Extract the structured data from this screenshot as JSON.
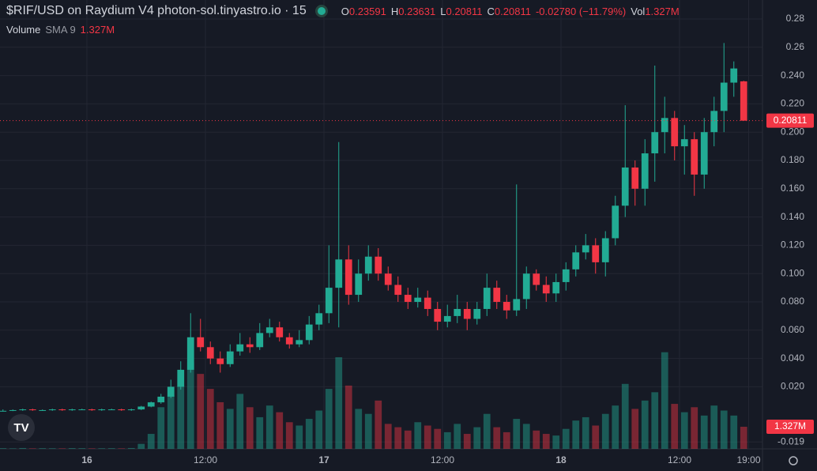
{
  "chart_data": {
    "type": "candlestick",
    "title": "$RIF/USD on Raydium V4 photon-sol.tinyastro.io · 15",
    "ohlc_legend": [
      {
        "label": "O",
        "value": "0.23591"
      },
      {
        "label": "H",
        "value": "0.23631"
      },
      {
        "label": "L",
        "value": "0.20811"
      },
      {
        "label": "C",
        "value": "0.20811"
      }
    ],
    "change": "-0.02780 (−11.79%)",
    "vol_label": "Vol",
    "volume_title": "Volume",
    "volume_sma": "SMA 9",
    "volume_value": "1.327M",
    "colors": {
      "up": "#22ab94",
      "down": "#f23645"
    },
    "grid": true,
    "xlim": [
      -8.8,
      68.4
    ],
    "xticks": [
      {
        "value": 0,
        "label": "16"
      },
      {
        "value": 12,
        "label": "12:00"
      },
      {
        "value": 24,
        "label": "17"
      },
      {
        "value": 36,
        "label": "12:00"
      },
      {
        "value": 48,
        "label": "18"
      },
      {
        "value": 60,
        "label": "12:00"
      },
      {
        "value": 67,
        "label": "19:00"
      }
    ],
    "ylim": [
      -0.0239,
      0.2934
    ],
    "yticks": [
      -0.019,
      {
        "value": 0.02,
        "label": "0.020"
      },
      {
        "value": 0.04,
        "label": "0.040"
      },
      {
        "value": 0.06,
        "label": "0.060"
      },
      {
        "value": 0.08,
        "label": "0.080"
      },
      {
        "value": 0.1,
        "label": "0.100"
      },
      {
        "value": 0.12,
        "label": "0.120"
      },
      {
        "value": 0.14,
        "label": "0.140"
      },
      {
        "value": 0.16,
        "label": "0.160"
      },
      {
        "value": 0.18,
        "label": "0.180"
      },
      {
        "value": 0.2,
        "label": "0.200"
      },
      {
        "value": 0.22,
        "label": "0.220"
      },
      {
        "value": 0.24,
        "label": "0.240"
      },
      0.26,
      0.28
    ],
    "volume_ylim": [
      0,
      12000000
    ],
    "x": [
      -8.5,
      -7.5,
      -6.5,
      -5.5,
      -4.5,
      -3.5,
      -2.5,
      -1.5,
      -0.5,
      0.5,
      1.5,
      2.5,
      3.5,
      4.5,
      5.5,
      6.5,
      7.5,
      8.5,
      9.5,
      10.5,
      11.5,
      12.5,
      13.5,
      14.5,
      15.5,
      16.5,
      17.5,
      18.5,
      19.5,
      20.5,
      21.5,
      22.5,
      23.5,
      24.5,
      25.5,
      26.5,
      27.5,
      28.5,
      29.5,
      30.5,
      31.5,
      32.5,
      33.5,
      34.5,
      35.5,
      36.5,
      37.5,
      38.5,
      39.5,
      40.5,
      41.5,
      42.5,
      43.5,
      44.5,
      45.5,
      46.5,
      47.5,
      48.5,
      49.5,
      50.5,
      51.5,
      52.5,
      53.5,
      54.5,
      55.5,
      56.5,
      57.5,
      58.5,
      59.5,
      60.5,
      61.5,
      62.5,
      63.5,
      64.5,
      65.5,
      66.5
    ],
    "open": [
      0.003,
      0.003,
      0.0035,
      0.004,
      0.0035,
      0.0035,
      0.004,
      0.0035,
      0.004,
      0.004,
      0.0035,
      0.004,
      0.004,
      0.0035,
      0.004,
      0.006,
      0.009,
      0.013,
      0.02,
      0.032,
      0.055,
      0.048,
      0.04,
      0.036,
      0.045,
      0.05,
      0.048,
      0.058,
      0.062,
      0.055,
      0.05,
      0.053,
      0.064,
      0.072,
      0.09,
      0.11,
      0.085,
      0.1,
      0.112,
      0.1,
      0.092,
      0.085,
      0.08,
      0.083,
      0.075,
      0.066,
      0.07,
      0.075,
      0.068,
      0.075,
      0.09,
      0.08,
      0.074,
      0.082,
      0.1,
      0.092,
      0.086,
      0.094,
      0.103,
      0.115,
      0.12,
      0.108,
      0.125,
      0.148,
      0.175,
      0.16,
      0.185,
      0.2,
      0.21,
      0.19,
      0.195,
      0.17,
      0.2,
      0.215,
      0.235,
      0.23591
    ],
    "high": [
      0.004,
      0.004,
      0.0045,
      0.0045,
      0.004,
      0.0045,
      0.0045,
      0.0045,
      0.0045,
      0.0045,
      0.0045,
      0.0045,
      0.0045,
      0.0045,
      0.0065,
      0.0095,
      0.015,
      0.025,
      0.038,
      0.072,
      0.068,
      0.052,
      0.045,
      0.05,
      0.058,
      0.055,
      0.065,
      0.068,
      0.066,
      0.058,
      0.06,
      0.07,
      0.078,
      0.12,
      0.193,
      0.12,
      0.11,
      0.12,
      0.118,
      0.105,
      0.098,
      0.09,
      0.09,
      0.088,
      0.08,
      0.078,
      0.085,
      0.08,
      0.08,
      0.1,
      0.095,
      0.085,
      0.163,
      0.105,
      0.103,
      0.098,
      0.1,
      0.108,
      0.12,
      0.128,
      0.125,
      0.13,
      0.155,
      0.219,
      0.18,
      0.195,
      0.247,
      0.225,
      0.215,
      0.205,
      0.2,
      0.21,
      0.225,
      0.263,
      0.25,
      0.23631
    ],
    "low": [
      0.0025,
      0.0028,
      0.003,
      0.003,
      0.003,
      0.003,
      0.003,
      0.003,
      0.0035,
      0.003,
      0.003,
      0.0035,
      0.003,
      0.003,
      0.0035,
      0.0055,
      0.008,
      0.012,
      0.018,
      0.03,
      0.045,
      0.036,
      0.03,
      0.034,
      0.042,
      0.044,
      0.046,
      0.055,
      0.052,
      0.047,
      0.048,
      0.05,
      0.06,
      0.065,
      0.062,
      0.078,
      0.08,
      0.095,
      0.095,
      0.088,
      0.08,
      0.075,
      0.076,
      0.07,
      0.06,
      0.062,
      0.065,
      0.06,
      0.064,
      0.07,
      0.075,
      0.068,
      0.07,
      0.075,
      0.088,
      0.08,
      0.08,
      0.088,
      0.098,
      0.11,
      0.1,
      0.098,
      0.12,
      0.14,
      0.148,
      0.148,
      0.165,
      0.185,
      0.18,
      0.17,
      0.155,
      0.16,
      0.19,
      0.2,
      0.225,
      0.20811
    ],
    "close": [
      0.003,
      0.0035,
      0.004,
      0.0035,
      0.0035,
      0.004,
      0.0035,
      0.004,
      0.004,
      0.0035,
      0.004,
      0.004,
      0.0035,
      0.004,
      0.006,
      0.009,
      0.013,
      0.02,
      0.032,
      0.055,
      0.048,
      0.04,
      0.036,
      0.045,
      0.05,
      0.048,
      0.058,
      0.062,
      0.055,
      0.05,
      0.053,
      0.064,
      0.072,
      0.09,
      0.11,
      0.085,
      0.1,
      0.112,
      0.1,
      0.092,
      0.085,
      0.08,
      0.083,
      0.075,
      0.066,
      0.07,
      0.075,
      0.068,
      0.075,
      0.09,
      0.08,
      0.074,
      0.082,
      0.1,
      0.092,
      0.086,
      0.094,
      0.103,
      0.115,
      0.12,
      0.108,
      0.125,
      0.148,
      0.175,
      0.16,
      0.185,
      0.2,
      0.21,
      0.19,
      0.195,
      0.17,
      0.2,
      0.215,
      0.235,
      0.245,
      0.20811
    ],
    "volume": [
      40000,
      30000,
      50000,
      30000,
      40000,
      35000,
      30000,
      45000,
      40000,
      30000,
      35000,
      40000,
      30000,
      50000,
      300000,
      900000,
      2500000,
      3200000,
      3800000,
      5200000,
      4500000,
      3600000,
      2800000,
      2400000,
      3300000,
      2500000,
      1900000,
      2600000,
      2200000,
      1600000,
      1400000,
      1800000,
      2300000,
      3600000,
      5500000,
      3800000,
      2400000,
      2100000,
      2900000,
      1500000,
      1300000,
      1100000,
      1600000,
      1400000,
      1200000,
      1000000,
      1500000,
      900000,
      1300000,
      2100000,
      1300000,
      1000000,
      1800000,
      1500000,
      1100000,
      900000,
      800000,
      1200000,
      1700000,
      1900000,
      1400000,
      2100000,
      2600000,
      3900000,
      2400000,
      2900000,
      3400000,
      5800000,
      2700000,
      2200000,
      2500000,
      2000000,
      2600000,
      2300000,
      2000000,
      1327000
    ]
  }
}
